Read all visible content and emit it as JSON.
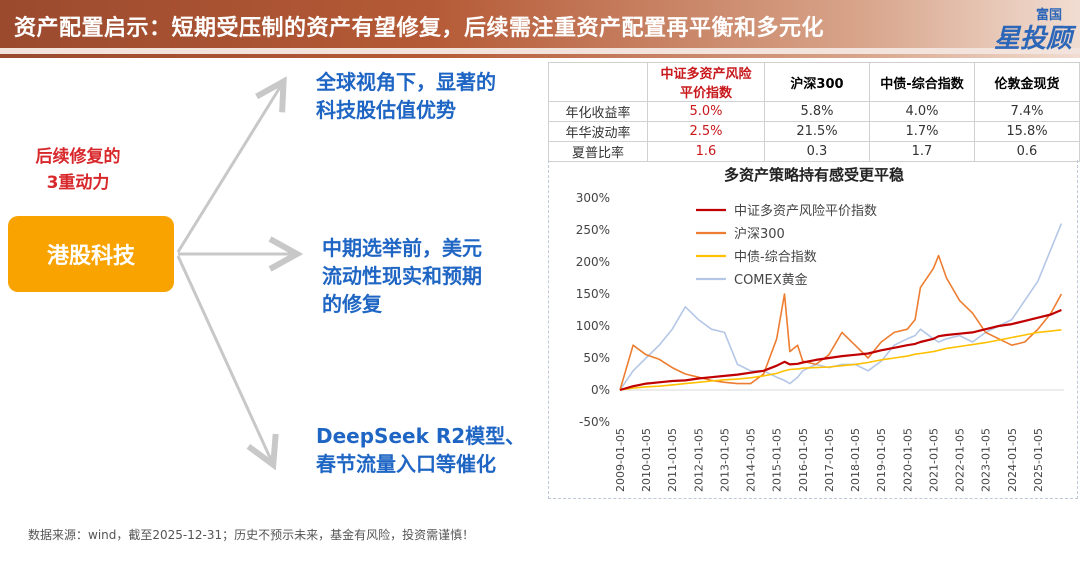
{
  "header": {
    "title": "资产配置启示：短期受压制的资产有望修复，后续需注重资产配置再平衡和多元化",
    "logo_top": "富国",
    "logo_main": "星投顾"
  },
  "left": {
    "side_label_line1": "后续修复的",
    "side_label_line2": "3重动力",
    "center_box": "港股科技",
    "points": [
      {
        "line1": "全球视角下，显著的",
        "line2": "科技股估值优势"
      },
      {
        "line1": "中期选举前，美元",
        "line2": "流动性现实和预期",
        "line3": "的修复"
      },
      {
        "line1": "DeepSeek R2模型、",
        "line2": "春节流量入口等催化"
      }
    ]
  },
  "table": {
    "headers": [
      {
        "line1": "中证多资产风险",
        "line2": "平价指数"
      },
      {
        "line1": "沪深300"
      },
      {
        "line1": "中债-综合指数"
      },
      {
        "line1": "伦敦金现货"
      }
    ],
    "rows": [
      {
        "label": "年化收益率",
        "values": [
          "5.0%",
          "5.8%",
          "4.0%",
          "7.4%"
        ]
      },
      {
        "label": "年华波动率",
        "values": [
          "2.5%",
          "21.5%",
          "1.7%",
          "15.8%"
        ]
      },
      {
        "label": "夏普比率",
        "values": [
          "1.6",
          "0.3",
          "1.7",
          "0.6"
        ]
      }
    ]
  },
  "chart_data": {
    "type": "line",
    "title": "多资产策略持有感受更平稳",
    "ylim": [
      -50,
      300
    ],
    "yticks": [
      "300%",
      "250%",
      "200%",
      "150%",
      "100%",
      "50%",
      "0%",
      "-50%"
    ],
    "xlabels": [
      "2009-01-05",
      "2010-01-05",
      "2011-01-05",
      "2012-01-05",
      "2013-01-05",
      "2014-01-05",
      "2015-01-05",
      "2016-01-05",
      "2017-01-05",
      "2018-01-05",
      "2019-01-05",
      "2020-01-05",
      "2021-01-05",
      "2022-01-05",
      "2023-01-05",
      "2024-01-05",
      "2025-01-05"
    ],
    "x": [
      2009.0,
      2009.5,
      2010.0,
      2010.5,
      2011.0,
      2011.5,
      2012.0,
      2012.5,
      2013.0,
      2013.5,
      2014.0,
      2014.5,
      2015.0,
      2015.3,
      2015.5,
      2015.8,
      2016.0,
      2016.5,
      2017.0,
      2017.5,
      2018.0,
      2018.5,
      2019.0,
      2019.5,
      2020.0,
      2020.3,
      2020.5,
      2021.0,
      2021.2,
      2021.5,
      2022.0,
      2022.5,
      2023.0,
      2023.5,
      2024.0,
      2024.5,
      2025.0,
      2025.5,
      2025.9
    ],
    "series": [
      {
        "name": "中证多资产风险平价指数",
        "color": "#c00000",
        "values": [
          0,
          6,
          10,
          12,
          14,
          15,
          18,
          20,
          22,
          24,
          27,
          30,
          38,
          44,
          40,
          41,
          43,
          47,
          50,
          53,
          55,
          57,
          62,
          66,
          70,
          72,
          75,
          80,
          84,
          86,
          88,
          90,
          95,
          100,
          103,
          108,
          113,
          118,
          125
        ]
      },
      {
        "name": "沪深300",
        "color": "#ed7d31",
        "values": [
          0,
          70,
          55,
          48,
          35,
          25,
          20,
          15,
          12,
          10,
          10,
          25,
          80,
          150,
          60,
          70,
          45,
          40,
          55,
          90,
          70,
          50,
          75,
          90,
          95,
          110,
          160,
          190,
          210,
          175,
          140,
          120,
          90,
          80,
          70,
          75,
          95,
          120,
          150
        ]
      },
      {
        "name": "中债-综合指数",
        "color": "#ffc000",
        "values": [
          0,
          3,
          5,
          6,
          8,
          10,
          12,
          14,
          16,
          17,
          19,
          22,
          26,
          30,
          32,
          33,
          34,
          35,
          36,
          38,
          40,
          43,
          47,
          50,
          53,
          56,
          57,
          60,
          62,
          65,
          68,
          71,
          74,
          78,
          82,
          86,
          90,
          92,
          94
        ]
      },
      {
        "name": "COMEX黄金",
        "color": "#b4c7e7",
        "values": [
          0,
          30,
          50,
          70,
          95,
          130,
          110,
          95,
          90,
          40,
          30,
          30,
          20,
          15,
          10,
          20,
          30,
          40,
          35,
          40,
          40,
          30,
          45,
          70,
          80,
          85,
          95,
          80,
          75,
          80,
          85,
          75,
          90,
          100,
          110,
          140,
          170,
          220,
          260
        ]
      }
    ]
  },
  "footer": {
    "source": "数据来源：wind，截至2025-12-31；历史不预示未来，基金有风险，投资需谨慎！"
  }
}
